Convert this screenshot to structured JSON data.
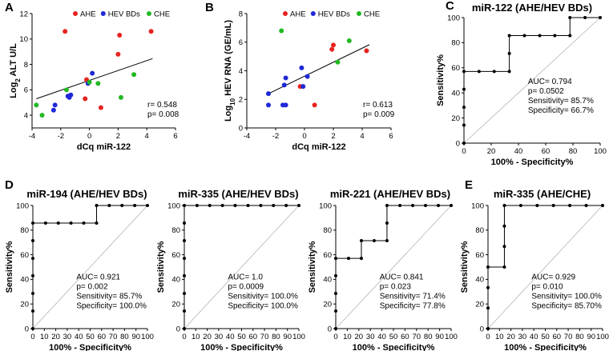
{
  "colors": {
    "AHE": "#e8231f",
    "HEV BDs": "#1f27d8",
    "CHE": "#22b822",
    "line": "#000000",
    "diag": "#b4b4b4"
  },
  "chart_data": [
    {
      "id": "A",
      "letter": "A",
      "type": "scatter",
      "title": "",
      "xlabel": "dCq miR-122",
      "ylabel_pre": "Log",
      "ylabel_sub": "2",
      "ylabel_post": " ALT U/L",
      "xlim": [
        -4,
        6
      ],
      "ylim": [
        3,
        12
      ],
      "xticks": [
        -4,
        -2,
        0,
        2,
        4,
        6
      ],
      "yticks": [
        4,
        6,
        8,
        10,
        12
      ],
      "legend": [
        "AHE",
        "HEV BDs",
        "CHE"
      ],
      "series": [
        {
          "name": "AHE",
          "points": [
            [
              -1.7,
              10.6
            ],
            [
              2.1,
              10.3
            ],
            [
              4.3,
              10.6
            ],
            [
              2.0,
              8.8
            ],
            [
              -0.2,
              6.8
            ],
            [
              0.8,
              4.6
            ],
            [
              -0.3,
              5.3
            ]
          ]
        },
        {
          "name": "HEV BDs",
          "points": [
            [
              -2.5,
              4.4
            ],
            [
              -2.4,
              4.8
            ],
            [
              -1.5,
              5.5
            ],
            [
              -1.3,
              5.6
            ],
            [
              -1.4,
              5.4
            ],
            [
              -0.1,
              6.5
            ],
            [
              0.2,
              7.3
            ]
          ]
        },
        {
          "name": "CHE",
          "points": [
            [
              -3.7,
              4.8
            ],
            [
              -3.3,
              4.0
            ],
            [
              -1.6,
              6.0
            ],
            [
              0.6,
              6.5
            ],
            [
              2.2,
              5.4
            ],
            [
              3.1,
              7.2
            ],
            [
              0.0,
              6.6
            ]
          ]
        }
      ],
      "fit": {
        "slope": 0.39,
        "intercept": 6.74,
        "x0": -3.7,
        "x1": 4.4
      },
      "stats": [
        "r= 0.548",
        "p= 0.008"
      ]
    },
    {
      "id": "B",
      "letter": "B",
      "type": "scatter",
      "title": "",
      "xlabel": "dCq miR-122",
      "ylabel_pre": "Log",
      "ylabel_sub": "10",
      "ylabel_post": " HEV RNA (GE/mL)",
      "xlim": [
        -4,
        6
      ],
      "ylim": [
        0,
        8
      ],
      "xticks": [
        -4,
        -2,
        0,
        2,
        4,
        6
      ],
      "yticks": [
        0,
        2,
        4,
        6,
        8
      ],
      "legend": [
        "AHE",
        "HEV BDs",
        "CHE"
      ],
      "series": [
        {
          "name": "AHE",
          "points": [
            [
              2.0,
              5.8
            ],
            [
              1.9,
              5.5
            ],
            [
              4.3,
              5.4
            ],
            [
              -0.3,
              2.9
            ],
            [
              0.7,
              1.6
            ]
          ]
        },
        {
          "name": "HEV BDs",
          "points": [
            [
              -2.5,
              2.4
            ],
            [
              -2.5,
              1.6
            ],
            [
              -1.5,
              1.6
            ],
            [
              -1.3,
              1.6
            ],
            [
              -1.4,
              3.0
            ],
            [
              -1.3,
              3.5
            ],
            [
              -0.2,
              4.2
            ],
            [
              0.2,
              3.6
            ],
            [
              -0.1,
              2.9
            ]
          ]
        },
        {
          "name": "CHE",
          "points": [
            [
              -1.6,
              6.8
            ],
            [
              3.1,
              6.1
            ],
            [
              2.3,
              4.6
            ]
          ]
        }
      ],
      "fit": {
        "slope": 0.49,
        "intercept": 3.62,
        "x0": -2.6,
        "x1": 4.5
      },
      "stats": [
        "r= 0.613",
        "p= 0.009"
      ]
    },
    {
      "id": "C",
      "letter": "C",
      "type": "line",
      "title": "miR-122 (AHE/HEV BDs)",
      "xlabel": "100% - Specificity%",
      "ylabel": "Sensitivity%",
      "xlim": [
        0,
        100
      ],
      "ylim": [
        0,
        100
      ],
      "xticks": [
        0,
        20,
        40,
        60,
        80,
        100
      ],
      "yticks": [
        0,
        20,
        40,
        60,
        80,
        100
      ],
      "roc": [
        [
          0,
          0
        ],
        [
          0,
          14.3
        ],
        [
          0,
          28.6
        ],
        [
          0,
          42.9
        ],
        [
          0,
          57.1
        ],
        [
          11.1,
          57.1
        ],
        [
          22.2,
          57.1
        ],
        [
          33.3,
          57.1
        ],
        [
          33.3,
          71.4
        ],
        [
          33.3,
          85.7
        ],
        [
          44.4,
          85.7
        ],
        [
          55.6,
          85.7
        ],
        [
          66.7,
          85.7
        ],
        [
          77.8,
          85.7
        ],
        [
          77.8,
          100
        ],
        [
          88.9,
          100
        ],
        [
          100,
          100
        ]
      ],
      "stats": [
        "AUC= 0.794",
        "p= 0.0502",
        "Sensitivity= 85.7%",
        "Specificity= 66.7%"
      ]
    },
    {
      "id": "D1",
      "letter": "D",
      "type": "line",
      "title": "miR-194  (AHE/HEV BDs)",
      "xlabel": "100% - Specificity%",
      "ylabel": "Sensitivity%",
      "xlim": [
        0,
        100
      ],
      "ylim": [
        0,
        100
      ],
      "xticks": [
        0,
        10,
        20,
        30,
        40,
        50,
        60,
        70,
        80,
        90,
        100
      ],
      "yticks": [
        0,
        20,
        40,
        60,
        80,
        100
      ],
      "roc": [
        [
          0,
          0
        ],
        [
          0,
          14.3
        ],
        [
          0,
          28.6
        ],
        [
          0,
          42.9
        ],
        [
          0,
          57.1
        ],
        [
          0,
          71.4
        ],
        [
          0,
          85.7
        ],
        [
          11.1,
          85.7
        ],
        [
          22.2,
          85.7
        ],
        [
          33.3,
          85.7
        ],
        [
          44.4,
          85.7
        ],
        [
          55.6,
          85.7
        ],
        [
          55.6,
          100
        ],
        [
          66.7,
          100
        ],
        [
          77.8,
          100
        ],
        [
          88.9,
          100
        ],
        [
          100,
          100
        ]
      ],
      "stats": [
        "AUC= 0.921",
        "p= 0.002",
        "Sensitivity= 85.7%",
        "Specificity= 100.0%"
      ]
    },
    {
      "id": "D2",
      "letter": "",
      "type": "line",
      "title": "miR-335  (AHE/HEV BDs)",
      "xlabel": "100% - Specificity%",
      "ylabel": "Sensitivity%",
      "xlim": [
        0,
        100
      ],
      "ylim": [
        0,
        100
      ],
      "xticks": [
        0,
        10,
        20,
        30,
        40,
        50,
        60,
        70,
        80,
        90,
        100
      ],
      "yticks": [
        0,
        20,
        40,
        60,
        80,
        100
      ],
      "roc": [
        [
          0,
          0
        ],
        [
          0,
          14.3
        ],
        [
          0,
          28.6
        ],
        [
          0,
          42.9
        ],
        [
          0,
          57.1
        ],
        [
          0,
          71.4
        ],
        [
          0,
          85.7
        ],
        [
          0,
          100
        ],
        [
          11.1,
          100
        ],
        [
          22.2,
          100
        ],
        [
          33.3,
          100
        ],
        [
          44.4,
          100
        ],
        [
          55.6,
          100
        ],
        [
          66.7,
          100
        ],
        [
          77.8,
          100
        ],
        [
          88.9,
          100
        ],
        [
          100,
          100
        ]
      ],
      "stats": [
        "AUC= 1.0",
        "p= 0.0009",
        "Sensitivity= 100.0%",
        "Specificity= 100.0%"
      ]
    },
    {
      "id": "D3",
      "letter": "",
      "type": "line",
      "title": "miR-221  (AHE/HEV BDs)",
      "xlabel": "100% - Specificity%",
      "ylabel": "Sensitivity%",
      "xlim": [
        0,
        100
      ],
      "ylim": [
        0,
        100
      ],
      "xticks": [
        0,
        10,
        20,
        30,
        40,
        50,
        60,
        70,
        80,
        90,
        100
      ],
      "yticks": [
        0,
        20,
        40,
        60,
        80,
        100
      ],
      "roc": [
        [
          0,
          0
        ],
        [
          0,
          14.3
        ],
        [
          0,
          28.6
        ],
        [
          0,
          42.9
        ],
        [
          0,
          57.1
        ],
        [
          11.1,
          57.1
        ],
        [
          22.2,
          57.1
        ],
        [
          22.2,
          71.4
        ],
        [
          33.3,
          71.4
        ],
        [
          44.4,
          71.4
        ],
        [
          44.4,
          85.7
        ],
        [
          44.4,
          100
        ],
        [
          55.6,
          100
        ],
        [
          66.7,
          100
        ],
        [
          77.8,
          100
        ],
        [
          88.9,
          100
        ],
        [
          100,
          100
        ]
      ],
      "stats": [
        "AUC= 0.841",
        "p= 0.023",
        "Sensitivity= 71.4%",
        "Specificity= 77.8%"
      ]
    },
    {
      "id": "E",
      "letter": "E",
      "type": "line",
      "title": "miR-335  (AHE/CHE)",
      "xlabel": "100% - Specificity%",
      "ylabel": "Sensitivity%",
      "xlim": [
        0,
        100
      ],
      "ylim": [
        0,
        100
      ],
      "xticks": [
        0,
        10,
        20,
        30,
        40,
        50,
        60,
        70,
        80,
        90,
        100
      ],
      "yticks": [
        0,
        20,
        40,
        60,
        80,
        100
      ],
      "roc": [
        [
          0,
          0
        ],
        [
          0,
          16.7
        ],
        [
          0,
          33.3
        ],
        [
          0,
          50
        ],
        [
          14.3,
          50
        ],
        [
          14.3,
          66.7
        ],
        [
          14.3,
          83.3
        ],
        [
          14.3,
          100
        ],
        [
          28.6,
          100
        ],
        [
          42.9,
          100
        ],
        [
          57.1,
          100
        ],
        [
          71.4,
          100
        ],
        [
          85.7,
          100
        ],
        [
          100,
          100
        ]
      ],
      "stats": [
        "AUC= 0.929",
        "p= 0.010",
        "Sensitivity= 100.0%",
        "Specificity= 85.70%"
      ]
    }
  ]
}
